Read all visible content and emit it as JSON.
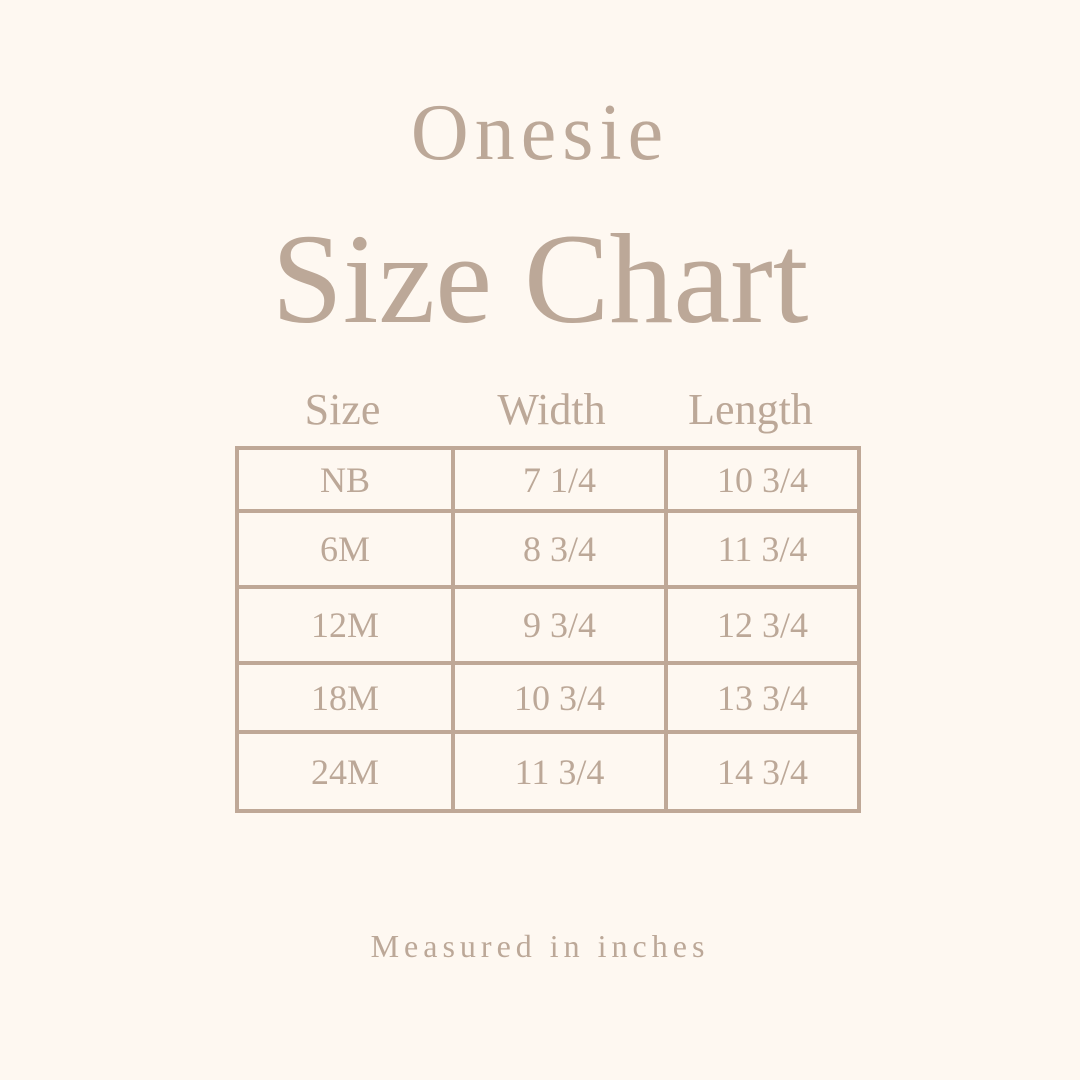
{
  "title_line1": "Onesie",
  "title_line2": "Size Chart",
  "headers": [
    "Size",
    "Width",
    "Length"
  ],
  "rows": [
    [
      "NB",
      "7 1/4",
      "10 3/4"
    ],
    [
      "6M",
      "8 3/4",
      "11 3/4"
    ],
    [
      "12M",
      "9 3/4",
      "12 3/4"
    ],
    [
      "18M",
      "10 3/4",
      "13 3/4"
    ],
    [
      "24M",
      "11 3/4",
      "14 3/4"
    ]
  ],
  "footnote": "Measured in inches",
  "colors": {
    "background": "#fef8f1",
    "text": "#bca898",
    "lines": "#bfa897"
  }
}
